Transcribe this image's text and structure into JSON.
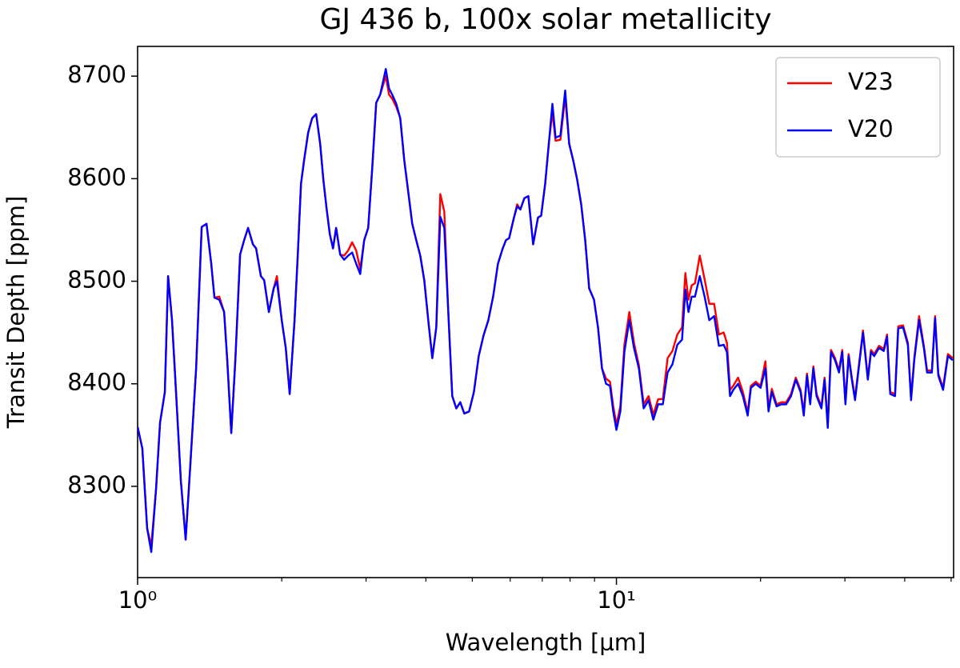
{
  "chart_data": {
    "type": "line",
    "title": "GJ 436 b, 100x solar metallicity",
    "xlabel": "Wavelength [µm]",
    "ylabel": "Transit Depth [ppm]",
    "xscale": "log",
    "xlim": [
      1,
      50.6
    ],
    "ylim": [
      8211,
      8729
    ],
    "xticks": [
      {
        "value": 1,
        "label": "10⁰"
      },
      {
        "value": 10,
        "label": "10¹"
      }
    ],
    "xminorticks": [
      2,
      3,
      4,
      5,
      6,
      7,
      8,
      9,
      20,
      30,
      40,
      50
    ],
    "yticks": [
      8300,
      8400,
      8500,
      8600,
      8700
    ],
    "legend": "upper right",
    "x": [
      1.0,
      1.023,
      1.047,
      1.068,
      1.093,
      1.114,
      1.14,
      1.158,
      1.18,
      1.203,
      1.231,
      1.26,
      1.289,
      1.325,
      1.361,
      1.393,
      1.425,
      1.447,
      1.481,
      1.516,
      1.539,
      1.569,
      1.6,
      1.637,
      1.669,
      1.701,
      1.741,
      1.768,
      1.809,
      1.838,
      1.88,
      1.924,
      1.954,
      2.0,
      2.039,
      2.078,
      2.127,
      2.16,
      2.194,
      2.227,
      2.271,
      2.315,
      2.36,
      2.406,
      2.443,
      2.481,
      2.52,
      2.559,
      2.598,
      2.649,
      2.7,
      2.753,
      2.806,
      2.861,
      2.917,
      2.973,
      3.031,
      3.09,
      3.15,
      3.211,
      3.299,
      3.35,
      3.402,
      3.469,
      3.536,
      3.605,
      3.675,
      3.746,
      3.819,
      3.893,
      3.969,
      4.046,
      4.125,
      4.205,
      4.287,
      4.37,
      4.455,
      4.541,
      4.63,
      4.719,
      4.811,
      4.924,
      5.039,
      5.157,
      5.277,
      5.401,
      5.527,
      5.656,
      5.788,
      5.878,
      5.969,
      6.109,
      6.204,
      6.3,
      6.423,
      6.547,
      6.7,
      6.857,
      6.963,
      7.099,
      7.237,
      7.35,
      7.463,
      7.638,
      7.816,
      7.968,
      8.122,
      8.28,
      8.441,
      8.606,
      8.772,
      8.978,
      9.152,
      9.33,
      9.512,
      9.696,
      9.848,
      10.0,
      10.19,
      10.39,
      10.64,
      10.88,
      11.14,
      11.4,
      11.67,
      11.94,
      12.22,
      12.5,
      12.79,
      13.09,
      13.4,
      13.71,
      13.93,
      14.14,
      14.36,
      14.59,
      14.93,
      15.28,
      15.63,
      16.0,
      16.37,
      16.75,
      17.01,
      17.27,
      17.54,
      17.95,
      18.37,
      18.8,
      19.09,
      19.54,
      20.0,
      20.47,
      20.78,
      21.11,
      21.6,
      22.1,
      22.62,
      23.15,
      23.69,
      24.24,
      24.62,
      25.0,
      25.39,
      25.78,
      26.18,
      26.8,
      27.21,
      27.63,
      28.06,
      28.61,
      29.16,
      29.62,
      30.08,
      30.54,
      31.02,
      31.5,
      31.99,
      32.73,
      33.5,
      34.01,
      34.54,
      35.35,
      36.17,
      36.74,
      37.31,
      38.18,
      38.77,
      39.68,
      40.61,
      41.24,
      41.88,
      42.86,
      43.86,
      44.54,
      45.58,
      46.29,
      47.01,
      48.1,
      49.23,
      50.38
    ],
    "series": [
      {
        "name": "V23",
        "color": "#ff0000",
        "values": [
          8358,
          8337,
          8259,
          8242,
          8298,
          8362,
          8392,
          8505,
          8462,
          8392,
          8306,
          8248,
          8322,
          8415,
          8553,
          8556,
          8517,
          8484,
          8485,
          8470,
          8423,
          8352,
          8423,
          8526,
          8540,
          8552,
          8536,
          8532,
          8505,
          8501,
          8470,
          8493,
          8505,
          8462,
          8435,
          8390,
          8462,
          8525,
          8595,
          8618,
          8645,
          8659,
          8663,
          8634,
          8599,
          8571,
          8546,
          8532,
          8552,
          8526,
          8525,
          8530,
          8538,
          8530,
          8512,
          8540,
          8552,
          8610,
          8674,
          8682,
          8700,
          8682,
          8678,
          8670,
          8659,
          8618,
          8587,
          8556,
          8540,
          8525,
          8501,
          8462,
          8425,
          8455,
          8585,
          8568,
          8470,
          8388,
          8376,
          8382,
          8371,
          8373,
          8392,
          8427,
          8447,
          8462,
          8485,
          8517,
          8532,
          8540,
          8542,
          8562,
          8575,
          8570,
          8581,
          8583,
          8536,
          8562,
          8564,
          8595,
          8638,
          8665,
          8637,
          8638,
          8680,
          8634,
          8618,
          8599,
          8575,
          8540,
          8493,
          8482,
          8455,
          8415,
          8405,
          8402,
          8378,
          8360,
          8378,
          8438,
          8470,
          8440,
          8418,
          8380,
          8388,
          8370,
          8385,
          8385,
          8425,
          8432,
          8448,
          8455,
          8508,
          8482,
          8496,
          8498,
          8525,
          8502,
          8478,
          8478,
          8448,
          8450,
          8440,
          8394,
          8398,
          8406,
          8392,
          8372,
          8398,
          8402,
          8398,
          8422,
          8376,
          8395,
          8380,
          8382,
          8382,
          8390,
          8406,
          8394,
          8372,
          8410,
          8382,
          8417,
          8390,
          8378,
          8406,
          8360,
          8433,
          8425,
          8413,
          8433,
          8382,
          8429,
          8406,
          8386,
          8413,
          8452,
          8406,
          8433,
          8429,
          8437,
          8434,
          8448,
          8392,
          8390,
          8456,
          8457,
          8440,
          8386,
          8425,
          8466,
          8437,
          8413,
          8413,
          8466,
          8410,
          8396,
          8429,
          8425
        ]
      },
      {
        "name": "V20",
        "color": "#0000ff",
        "values": [
          8358,
          8337,
          8259,
          8236,
          8298,
          8362,
          8392,
          8505,
          8462,
          8392,
          8306,
          8248,
          8322,
          8415,
          8553,
          8556,
          8517,
          8484,
          8482,
          8470,
          8423,
          8352,
          8423,
          8526,
          8540,
          8552,
          8536,
          8532,
          8505,
          8501,
          8470,
          8493,
          8500,
          8462,
          8435,
          8390,
          8462,
          8525,
          8595,
          8618,
          8645,
          8659,
          8663,
          8634,
          8599,
          8571,
          8546,
          8532,
          8552,
          8526,
          8521,
          8525,
          8528,
          8517,
          8507,
          8540,
          8552,
          8610,
          8674,
          8682,
          8707,
          8688,
          8682,
          8673,
          8659,
          8618,
          8587,
          8556,
          8540,
          8525,
          8501,
          8462,
          8425,
          8455,
          8563,
          8552,
          8470,
          8388,
          8376,
          8382,
          8371,
          8373,
          8392,
          8427,
          8447,
          8462,
          8485,
          8517,
          8532,
          8540,
          8542,
          8562,
          8573,
          8570,
          8581,
          8583,
          8536,
          8562,
          8564,
          8595,
          8638,
          8673,
          8640,
          8642,
          8686,
          8634,
          8618,
          8599,
          8575,
          8540,
          8493,
          8482,
          8455,
          8415,
          8400,
          8398,
          8373,
          8355,
          8373,
          8431,
          8462,
          8435,
          8415,
          8376,
          8384,
          8365,
          8380,
          8380,
          8411,
          8419,
          8438,
          8443,
          8492,
          8470,
          8485,
          8485,
          8505,
          8485,
          8462,
          8466,
          8437,
          8438,
          8431,
          8388,
          8394,
          8400,
          8388,
          8369,
          8396,
          8400,
          8396,
          8415,
          8373,
          8392,
          8378,
          8380,
          8380,
          8388,
          8404,
          8392,
          8369,
          8408,
          8380,
          8415,
          8388,
          8376,
          8404,
          8357,
          8431,
          8423,
          8411,
          8431,
          8380,
          8427,
          8404,
          8384,
          8411,
          8450,
          8404,
          8431,
          8427,
          8435,
          8432,
          8446,
          8390,
          8388,
          8454,
          8455,
          8438,
          8384,
          8423,
          8462,
          8435,
          8411,
          8411,
          8464,
          8408,
          8394,
          8427,
          8423
        ]
      }
    ]
  }
}
